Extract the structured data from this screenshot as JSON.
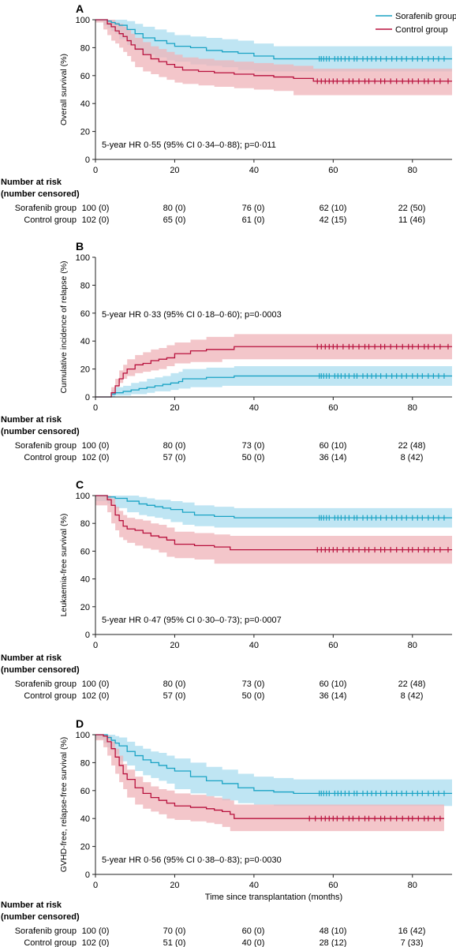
{
  "legend": {
    "placement": "top-right",
    "sorafenib": "Sorafenib group",
    "control": "Control group"
  },
  "colors": {
    "sorafenib": "#1aa3c4",
    "sorafenib_band": "#a9dcef",
    "control": "#b8113d",
    "control_band": "#efb3b8",
    "axis": "#222222"
  },
  "x_ticks": [
    "0",
    "20",
    "40",
    "60",
    "80"
  ],
  "y_ticks": [
    "0",
    "20",
    "40",
    "60",
    "80",
    "100"
  ],
  "risk_header": [
    "Number at risk",
    "(number censored)"
  ],
  "chart_data": [
    {
      "panel": "A",
      "type": "line",
      "ylabel": "Overall survival (%)",
      "xlabel": "",
      "xlim": [
        0,
        90
      ],
      "ylim": [
        0,
        100
      ],
      "annotation": "5-year HR 0·55 (95% CI 0·34–0·88); p=0·011",
      "series": [
        {
          "name": "Sorafenib group",
          "x": [
            0,
            2,
            3,
            4,
            5,
            6,
            8,
            10,
            12,
            15,
            18,
            20,
            24,
            28,
            32,
            36,
            40,
            45,
            56,
            90
          ],
          "y": [
            100,
            100,
            99,
            98,
            97,
            96,
            93,
            90,
            87,
            85,
            83,
            81,
            80,
            78,
            77,
            76,
            74,
            72,
            72,
            72
          ],
          "lower": [
            100,
            99,
            96,
            94,
            92,
            90,
            86,
            82,
            78,
            75,
            73,
            71,
            70,
            68,
            67,
            66,
            64,
            63,
            63,
            63
          ],
          "upper": [
            100,
            100,
            100,
            100,
            100,
            100,
            99,
            97,
            95,
            93,
            91,
            89,
            88,
            87,
            86,
            85,
            83,
            81,
            81,
            81
          ],
          "censor_x": [
            56.5,
            57,
            57.6,
            58.3,
            59,
            60.4,
            61.2,
            62,
            63,
            64,
            65.3,
            66,
            67.5,
            68.6,
            69.7,
            70.8,
            72,
            73.4,
            74.8,
            76,
            77.3,
            78.5,
            80,
            81.3,
            82.5,
            84,
            85.3,
            86.6,
            88
          ]
        },
        {
          "name": "Control group",
          "x": [
            0,
            2,
            3,
            4,
            5,
            6,
            7,
            8,
            9,
            10,
            12,
            14,
            16,
            18,
            20,
            22,
            26,
            30,
            35,
            40,
            45,
            50,
            55,
            90
          ],
          "y": [
            100,
            100,
            97,
            95,
            92,
            90,
            88,
            85,
            82,
            79,
            75,
            72,
            70,
            68,
            66,
            64,
            63,
            62,
            61,
            60,
            59,
            58,
            56,
            56
          ],
          "lower": [
            100,
            98,
            93,
            89,
            85,
            83,
            80,
            77,
            74,
            70,
            66,
            63,
            61,
            59,
            57,
            55,
            54,
            53,
            52,
            51,
            50,
            49,
            46,
            46
          ],
          "upper": [
            100,
            100,
            100,
            100,
            98,
            97,
            95,
            93,
            90,
            87,
            84,
            81,
            79,
            77,
            75,
            73,
            72,
            71,
            70,
            69,
            68,
            67,
            65,
            65
          ],
          "censor_x": [
            56,
            57,
            58,
            59,
            60,
            61,
            62.5,
            64,
            65,
            66.5,
            68,
            69,
            70.5,
            72,
            73,
            74.5,
            76,
            77.5,
            79,
            80,
            81.5,
            83,
            84,
            85.5,
            87,
            89
          ]
        }
      ],
      "risk_table": {
        "sorafenib": [
          "100 (0)",
          "80 (0)",
          "76 (0)",
          "62 (10)",
          "22 (50)"
        ],
        "control": [
          "102 (0)",
          "65 (0)",
          "61 (0)",
          "42 (15)",
          "11 (46)"
        ]
      }
    },
    {
      "panel": "B",
      "type": "line",
      "ylabel": "Cumulative incidence of relapse (%)",
      "xlabel": "",
      "xlim": [
        0,
        90
      ],
      "ylim": [
        0,
        100
      ],
      "annotation": "5-year HR 0·33 (95% CI 0·18–0·60); p=0·0003",
      "series": [
        {
          "name": "Sorafenib group",
          "x": [
            0,
            3,
            4,
            5,
            7,
            9,
            11,
            13,
            15,
            17,
            19,
            21,
            22,
            24,
            28,
            32,
            35,
            40,
            56,
            90
          ],
          "y": [
            0,
            0,
            2,
            3,
            4,
            5,
            6,
            7,
            8,
            9,
            10,
            11,
            13,
            13,
            14,
            14,
            15,
            15,
            15,
            15
          ],
          "lower": [
            0,
            0,
            0,
            0,
            1,
            1,
            2,
            2,
            3,
            4,
            4,
            5,
            6,
            6,
            7,
            7,
            8,
            8,
            8,
            8
          ],
          "upper": [
            0,
            0,
            5,
            7,
            8,
            10,
            11,
            13,
            14,
            15,
            17,
            18,
            20,
            20,
            21,
            21,
            22,
            22,
            22,
            22
          ],
          "censor_x": [
            56.5,
            57,
            57.6,
            58.3,
            59,
            60.4,
            61.2,
            62,
            63,
            64,
            65.3,
            66,
            67.5,
            68.6,
            69.7,
            70.8,
            72,
            73.4,
            74.8,
            76,
            77.3,
            78.5,
            80,
            81.3,
            82.5,
            84,
            85.3,
            86.6,
            88
          ]
        },
        {
          "name": "Control group",
          "x": [
            0,
            3,
            4,
            5,
            6,
            7,
            8,
            10,
            12,
            14,
            16,
            18,
            20,
            24,
            28,
            32,
            35,
            40,
            56,
            90
          ],
          "y": [
            0,
            0,
            3,
            8,
            13,
            17,
            20,
            23,
            24,
            26,
            27,
            28,
            31,
            33,
            34,
            34,
            36,
            36,
            36,
            36
          ],
          "lower": [
            0,
            0,
            0,
            3,
            7,
            10,
            13,
            15,
            17,
            18,
            19,
            20,
            22,
            24,
            25,
            25,
            27,
            27,
            27,
            27
          ],
          "upper": [
            0,
            0,
            7,
            13,
            19,
            23,
            27,
            30,
            32,
            34,
            35,
            37,
            39,
            41,
            43,
            43,
            45,
            45,
            45,
            45
          ],
          "censor_x": [
            56,
            57,
            58,
            59,
            60,
            61,
            62.5,
            64,
            65,
            66.5,
            68,
            69,
            70.5,
            72,
            73,
            74.5,
            76,
            77.5,
            79,
            80,
            81.5,
            83,
            84,
            85.5,
            87,
            89
          ]
        }
      ],
      "risk_table": {
        "sorafenib": [
          "100 (0)",
          "80 (0)",
          "73 (0)",
          "60 (10)",
          "22 (48)"
        ],
        "control": [
          "102 (0)",
          "57 (0)",
          "50 (0)",
          "36 (14)",
          "8 (42)"
        ]
      }
    },
    {
      "panel": "C",
      "type": "line",
      "ylabel": "Leukaemia-free survival (%)",
      "xlabel": "",
      "xlim": [
        0,
        90
      ],
      "ylim": [
        0,
        100
      ],
      "annotation": "5-year HR 0·47 (95% CI 0·30–0·73); p=0·0007",
      "series": [
        {
          "name": "Sorafenib group",
          "x": [
            0,
            3,
            5,
            8,
            11,
            13,
            15,
            17,
            19,
            22,
            25,
            30,
            35,
            40,
            56,
            90
          ],
          "y": [
            100,
            99,
            98,
            96,
            94,
            93,
            92,
            91,
            90,
            88,
            86,
            85,
            84,
            84,
            84,
            84
          ],
          "lower": [
            100,
            96,
            94,
            91,
            88,
            86,
            85,
            84,
            83,
            81,
            79,
            78,
            77,
            77,
            77,
            77
          ],
          "upper": [
            100,
            100,
            100,
            100,
            99,
            98,
            97,
            97,
            96,
            95,
            93,
            92,
            91,
            91,
            91,
            91
          ],
          "censor_x": [
            56.5,
            57,
            57.6,
            58.3,
            59,
            60.4,
            61.2,
            62,
            63,
            64,
            65.3,
            66,
            67.5,
            68.6,
            69.7,
            70.8,
            72,
            73.4,
            74.8,
            76,
            77.3,
            78.5,
            80,
            81.3,
            82.5,
            84,
            85.3,
            86.6,
            88
          ]
        },
        {
          "name": "Control group",
          "x": [
            0,
            3,
            4,
            5,
            6,
            7,
            8,
            10,
            12,
            14,
            16,
            18,
            20,
            25,
            30,
            34,
            40,
            56,
            90
          ],
          "y": [
            100,
            97,
            93,
            86,
            82,
            78,
            76,
            75,
            73,
            71,
            70,
            68,
            65,
            64,
            63,
            61,
            61,
            61,
            61
          ],
          "lower": [
            100,
            93,
            88,
            80,
            75,
            70,
            68,
            66,
            64,
            62,
            61,
            59,
            56,
            55,
            54,
            51,
            51,
            51,
            51
          ],
          "upper": [
            100,
            100,
            98,
            92,
            89,
            86,
            84,
            83,
            82,
            80,
            79,
            77,
            74,
            73,
            72,
            71,
            71,
            71,
            71
          ],
          "censor_x": [
            56,
            57,
            58,
            59,
            60,
            61,
            62.5,
            64,
            65,
            66.5,
            68,
            69,
            70.5,
            72,
            73,
            74.5,
            76,
            77.5,
            79,
            80,
            81.5,
            83,
            84,
            85.5,
            87,
            89
          ]
        }
      ],
      "risk_table": {
        "sorafenib": [
          "100 (0)",
          "80 (0)",
          "73 (0)",
          "60 (10)",
          "22 (48)"
        ],
        "control": [
          "102 (0)",
          "57 (0)",
          "50 (0)",
          "36 (14)",
          "8 (42)"
        ]
      }
    },
    {
      "panel": "D",
      "type": "line",
      "ylabel": "GVHD-free, relapse-free survival (%)",
      "xlabel": "Time since transplantation (months)",
      "xlim": [
        0,
        90
      ],
      "ylim": [
        0,
        100
      ],
      "annotation": "5-year HR 0·56 (95% CI 0·38–0·83); p=0·0030",
      "series": [
        {
          "name": "Sorafenib group",
          "x": [
            0,
            2,
            3,
            4,
            5,
            6,
            8,
            10,
            12,
            14,
            16,
            18,
            20,
            24,
            28,
            32,
            36,
            40,
            45,
            50,
            56,
            90
          ],
          "y": [
            100,
            100,
            98,
            96,
            94,
            92,
            88,
            85,
            82,
            80,
            78,
            76,
            74,
            70,
            67,
            65,
            62,
            60,
            59,
            58,
            58,
            58
          ],
          "lower": [
            100,
            97,
            94,
            91,
            89,
            86,
            81,
            78,
            74,
            71,
            69,
            67,
            65,
            61,
            58,
            56,
            53,
            51,
            50,
            49,
            49,
            49
          ],
          "upper": [
            100,
            100,
            100,
            100,
            99,
            98,
            95,
            92,
            90,
            88,
            87,
            85,
            83,
            80,
            77,
            75,
            72,
            70,
            69,
            68,
            68,
            68
          ],
          "censor_x": [
            56.5,
            57,
            57.6,
            58.3,
            59,
            60.4,
            61.2,
            62,
            63,
            64,
            65.3,
            66,
            67.5,
            68.6,
            69.7,
            70.8,
            72,
            73.4,
            74.8,
            76,
            77.3,
            78.5,
            80,
            81.3,
            82.5,
            84,
            85.3,
            86.6,
            88
          ]
        },
        {
          "name": "Control group",
          "x": [
            0,
            2,
            3,
            4,
            5,
            6,
            7,
            8,
            10,
            12,
            14,
            16,
            18,
            20,
            24,
            28,
            30,
            32,
            34,
            35,
            40,
            56,
            88
          ],
          "y": [
            100,
            99,
            95,
            90,
            84,
            78,
            72,
            68,
            62,
            58,
            55,
            53,
            51,
            49,
            48,
            47,
            46,
            45,
            43,
            40,
            40,
            40,
            40
          ],
          "lower": [
            100,
            96,
            91,
            85,
            78,
            72,
            66,
            61,
            55,
            50,
            47,
            45,
            43,
            40,
            39,
            38,
            37,
            36,
            34,
            31,
            31,
            31,
            31
          ],
          "upper": [
            100,
            100,
            99,
            95,
            90,
            85,
            79,
            75,
            70,
            66,
            63,
            61,
            60,
            58,
            57,
            56,
            55,
            54,
            53,
            50,
            50,
            50,
            50
          ],
          "censor_x": [
            54,
            55.5,
            57,
            58,
            59,
            60,
            61,
            62.5,
            64,
            65,
            66.5,
            68,
            69,
            70.5,
            72,
            73,
            74.5,
            76,
            77.5,
            79,
            80,
            81.5,
            83,
            84,
            85.5,
            87
          ]
        }
      ],
      "risk_table": {
        "sorafenib": [
          "100 (0)",
          "70 (0)",
          "60 (0)",
          "48 (10)",
          "16 (42)"
        ],
        "control": [
          "102 (0)",
          "51 (0)",
          "40 (0)",
          "28 (12)",
          "7 (33)"
        ]
      }
    }
  ]
}
